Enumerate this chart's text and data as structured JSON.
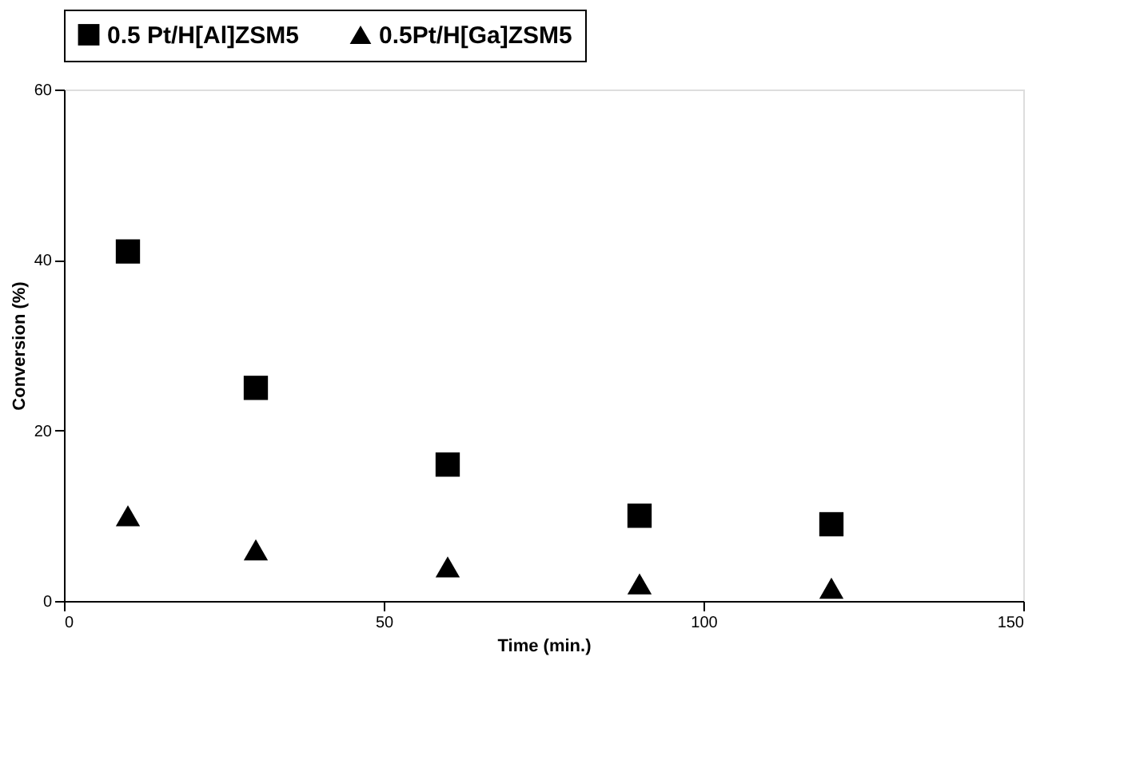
{
  "chart_data": {
    "type": "scatter",
    "xlabel": "Time (min.)",
    "ylabel": "Conversion (%)",
    "x": [
      10,
      30,
      60,
      90,
      120
    ],
    "series": [
      {
        "name": "0.5 Pt/H[Al]ZSM5",
        "color": "#000000",
        "marker": "square",
        "values": [
          41,
          25,
          16,
          10,
          9
        ]
      },
      {
        "name": "0.5Pt/H[Ga]ZSM5",
        "color": "#000000",
        "marker": "triangle",
        "values": [
          10,
          6,
          4,
          2,
          1.5
        ]
      }
    ],
    "xlim": [
      0,
      150
    ],
    "xticks": [
      0,
      50,
      100,
      150
    ],
    "ylim": [
      0,
      60
    ],
    "yticks": [
      0,
      20,
      40,
      60
    ],
    "grid": false,
    "legend": "top"
  }
}
